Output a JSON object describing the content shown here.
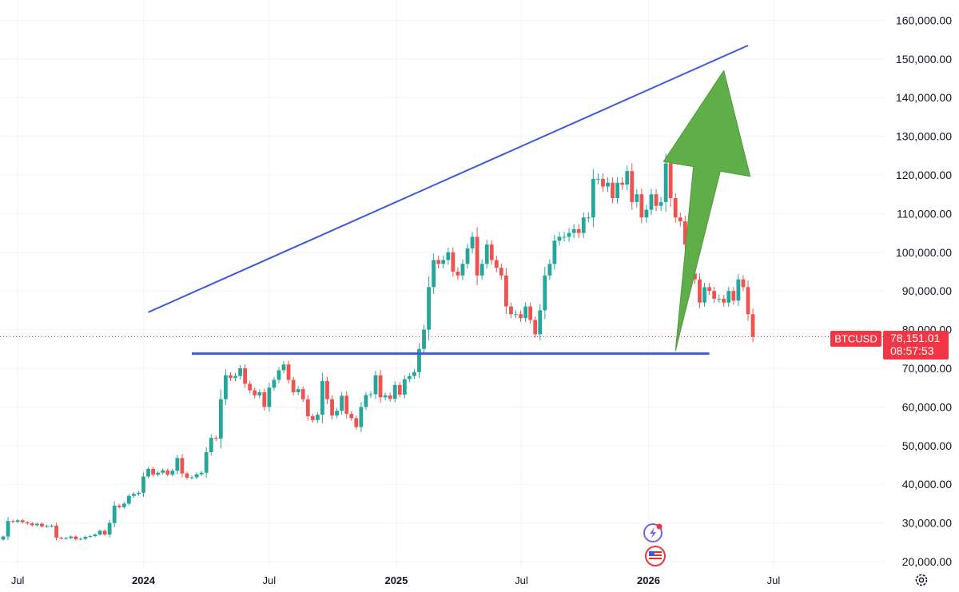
{
  "symbol": "BTCUSD",
  "last_price": "78,151.01",
  "countdown": "08:57:53",
  "colors": {
    "up": "#26a69a",
    "down": "#ef5350",
    "trendline": "#3b5bdb",
    "arrow": "#5fae4a",
    "price_label_bg": "#f23645",
    "grid": "#f0f3fa",
    "text": "#131722"
  },
  "icons": [
    "settings-gear-icon",
    "lightning-event-icon",
    "us-flag-event-icon"
  ],
  "chart_data": {
    "type": "candlestick",
    "interval": "weekly",
    "y_axis": {
      "ticks": [
        "20,000.00",
        "30,000.00",
        "40,000.00",
        "50,000.00",
        "60,000.00",
        "70,000.00",
        "80,000.00",
        "90,000.00",
        "100,000.00",
        "110,000.00",
        "120,000.00",
        "130,000.00",
        "140,000.00",
        "150,000.00",
        "160,000.00"
      ],
      "range": [
        19000,
        162000
      ]
    },
    "x_axis": {
      "ticks": [
        {
          "label": "Jul",
          "bold": false
        },
        {
          "label": "2024",
          "bold": true
        },
        {
          "label": "Jul",
          "bold": false
        },
        {
          "label": "2025",
          "bold": true
        },
        {
          "label": "Jul",
          "bold": false
        },
        {
          "label": "2026",
          "bold": true
        },
        {
          "label": "Jul",
          "bold": false
        }
      ],
      "range": [
        "2023-06-12",
        "2026-08-31"
      ]
    },
    "weekly_closes_start": "2023-06-12",
    "closes": [
      26500,
      30500,
      30300,
      30700,
      30200,
      29900,
      29400,
      29800,
      29100,
      29200,
      29300,
      26200,
      26000,
      26100,
      26500,
      25800,
      25900,
      26400,
      26600,
      27000,
      28000,
      27000,
      30000,
      34500,
      34100,
      35000,
      37000,
      37500,
      37800,
      42000,
      44000,
      42500,
      43000,
      43600,
      42500,
      43500,
      46800,
      42800,
      41700,
      41800,
      42600,
      43000,
      48300,
      52000,
      51800,
      62000,
      68200,
      67500,
      68000,
      70000,
      66000,
      64300,
      63000,
      63800,
      60000,
      65000,
      67000,
      69500,
      71000,
      67000,
      63800,
      64600,
      62000,
      57600,
      56600,
      58000,
      66700,
      62000,
      57800,
      59000,
      62900,
      58200,
      57100,
      54800,
      60000,
      63100,
      63300,
      68200,
      62500,
      63000,
      62100,
      65700,
      63200,
      67200,
      68000,
      69000,
      75000,
      80000,
      91000,
      98000,
      97000,
      98000,
      100000,
      95000,
      94000,
      97000,
      101000,
      104000,
      94000,
      97000,
      102000,
      98000,
      96000,
      94000,
      86000,
      84000,
      84000,
      83000,
      86000,
      82500,
      78800,
      85000,
      94000,
      97000,
      103000,
      104000,
      104000,
      105000,
      106000,
      105000,
      109000,
      109000,
      119000,
      119000,
      117000,
      118000,
      114000,
      118000,
      117500,
      121000,
      113000,
      115000,
      109000,
      111000,
      115000,
      112000,
      113000,
      123000,
      114000,
      109000,
      108000,
      102000,
      94500,
      93000,
      87000,
      91000,
      90000,
      88000,
      88000,
      87000,
      90000,
      87500,
      93000,
      91000,
      84000,
      78151
    ],
    "annotations": [
      {
        "type": "trendline",
        "from": [
          "2024-01-08",
          84500
        ],
        "to": [
          "2026-05-25",
          153500
        ]
      },
      {
        "type": "horizontal_line",
        "value": 73800,
        "from": "2024-03-11",
        "to": "2026-03-30"
      },
      {
        "type": "arrow",
        "from": [
          "2026-02-09",
          74500
        ],
        "to": [
          "2026-04-20",
          147000
        ]
      },
      {
        "type": "price_line",
        "value": 78151.01
      }
    ]
  }
}
